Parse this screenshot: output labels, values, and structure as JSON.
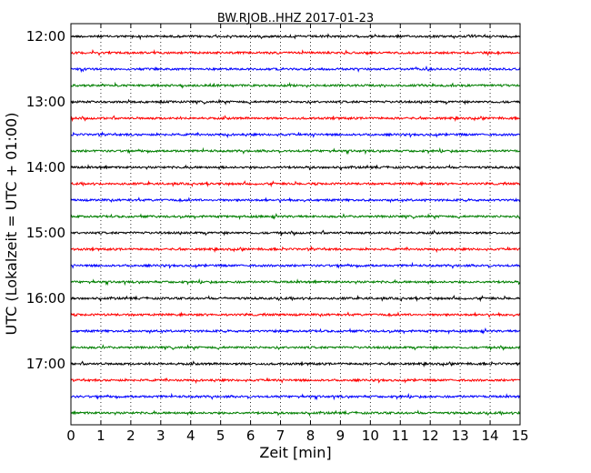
{
  "chart_data": {
    "type": "line",
    "title": "BW.RJOB..HHZ 2017-01-23",
    "xlabel": "Zeit  [min]",
    "ylabel": "UTC (Lokalzeit = UTC + 01:00)",
    "xlim": [
      0,
      15
    ],
    "x_ticks": [
      "0",
      "1",
      "2",
      "3",
      "4",
      "5",
      "6",
      "7",
      "8",
      "9",
      "10",
      "11",
      "12",
      "13",
      "14",
      "15"
    ],
    "time_start": "12:00",
    "row_interval_minutes": 15,
    "row_count": 24,
    "y_ticks": [
      "12:00",
      "13:00",
      "14:00",
      "15:00",
      "16:00",
      "17:00"
    ],
    "colors": [
      "#000000",
      "#ff0000",
      "#0000ff",
      "#007f00"
    ],
    "grid": "x-dotted",
    "legend": "none"
  }
}
